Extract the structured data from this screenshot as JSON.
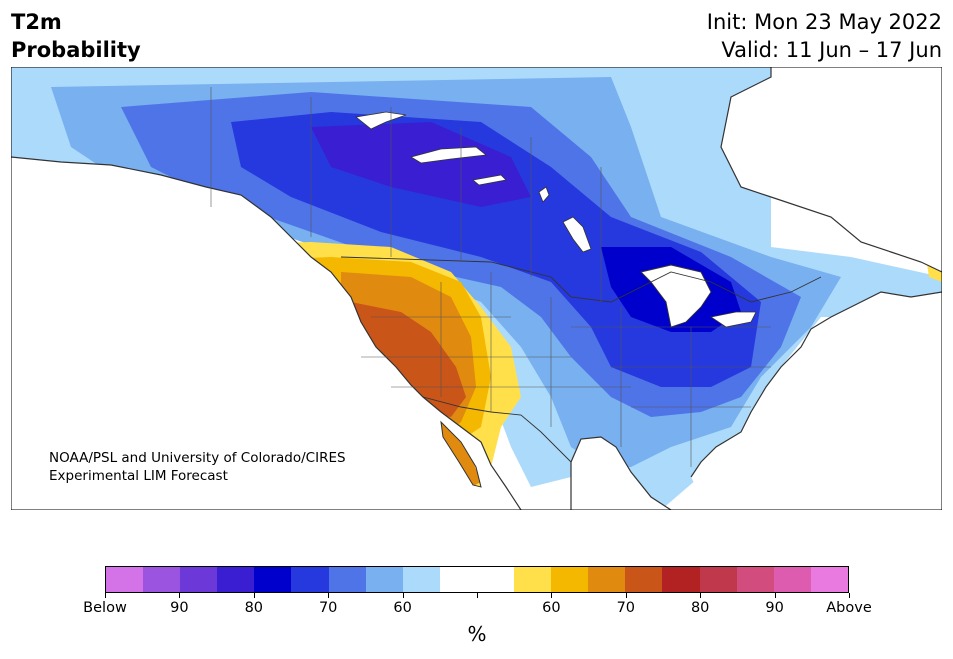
{
  "header": {
    "title_line1": "T2m",
    "title_line2": "Probability",
    "init": "Init: Mon 23 May 2022",
    "valid": "Valid: 11 Jun – 17 Jun"
  },
  "credit": {
    "line1": "NOAA/PSL and University of Colorado/CIRES",
    "line2": "Experimental LIM Forecast"
  },
  "colorbar": {
    "colors": [
      "#d472e8",
      "#9b54e0",
      "#6c38d8",
      "#3a1ed2",
      "#0000cc",
      "#2539df",
      "#4f74e8",
      "#78b0f0",
      "#acdafb",
      "#ffffff",
      "#ffffff",
      "#ffe04a",
      "#f4b800",
      "#e08a10",
      "#c95519",
      "#b22222",
      "#c0384b",
      "#d24d7e",
      "#dd5caf",
      "#e97be0"
    ],
    "tick_labels": [
      "Below",
      "90",
      "80",
      "70",
      "60",
      "",
      "60",
      "70",
      "80",
      "90",
      "Above"
    ],
    "unit": "%"
  },
  "map_colors": {
    "ocean": "#ffffff",
    "border": "#333333",
    "lakes": "#ffffff"
  }
}
